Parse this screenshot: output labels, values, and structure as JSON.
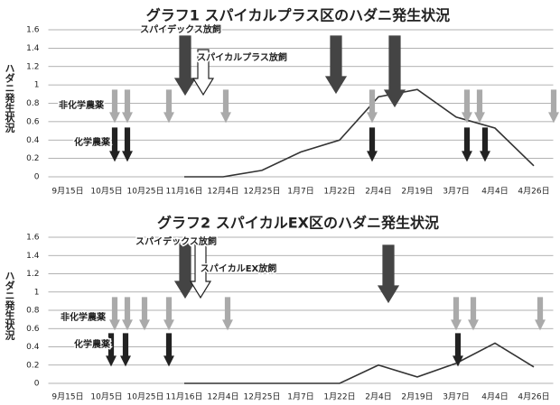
{
  "chart_data": [
    {
      "type": "line",
      "title": "グラフ1  スパイカルプラス区のハダニ発生状況",
      "y_label": "ハダニ発生状況",
      "annotations": [
        "スパイデックス放飼",
        "スパイカルプラス放飼",
        "非化学農薬",
        "化学農薬"
      ],
      "categories": [
        "9月15日",
        "10月5日",
        "10月25日",
        "11月16日",
        "12月4日",
        "12月25日",
        "1月7日",
        "1月22日",
        "2月4日",
        "2月19日",
        "3月7日",
        "4月4日",
        "4月26日"
      ],
      "values": [
        null,
        null,
        null,
        0,
        0,
        0.07,
        0.27,
        0.4,
        0.87,
        0.95,
        0.65,
        0.53,
        0.12
      ],
      "color": "#333333",
      "ylim": [
        0,
        1.6
      ],
      "yticks": [
        0,
        0.2,
        0.4,
        0.6,
        0.8,
        1,
        1.2,
        1.4,
        1.6
      ],
      "grid": true
    },
    {
      "type": "line",
      "title": "グラフ2  スパイカルEX区のハダニ発生状況",
      "y_label": "ハダニ発生状況",
      "annotations": [
        "スパイデックス放飼",
        "スパイカルEX放飼",
        "非化学農薬",
        "化学農薬"
      ],
      "categories": [
        "9月15日",
        "10月5日",
        "10月25日",
        "11月16日",
        "12月4日",
        "12月25日",
        "1月7日",
        "1月22日",
        "2月4日",
        "2月19日",
        "3月7日",
        "4月4日",
        "4月26日"
      ],
      "values": [
        null,
        null,
        null,
        0,
        0,
        0,
        0,
        0,
        0.2,
        0.07,
        0.22,
        0.44,
        0.18
      ],
      "color": "#333333",
      "ylim": [
        0,
        1.6
      ],
      "yticks": [
        0,
        0.2,
        0.4,
        0.6,
        0.8,
        1,
        1.2,
        1.4,
        1.6
      ],
      "grid": true
    }
  ]
}
